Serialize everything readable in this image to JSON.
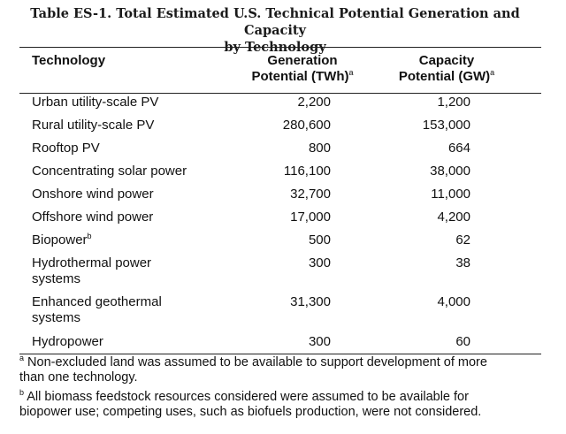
{
  "table": {
    "title_line1": "Table ES-1. Total Estimated U.S. Technical Potential Generation and Capacity",
    "title_line2": "by Technology",
    "headers": {
      "technology": "Technology",
      "generation_line1": "Generation",
      "generation_line2": "Potential (TWh)",
      "generation_sup": "a",
      "capacity_line1": "Capacity",
      "capacity_line2": "Potential (GW)",
      "capacity_sup": "a"
    },
    "rows": [
      {
        "name_line1": "Urban utility-scale PV",
        "name_line2": "",
        "sup": "",
        "generation": "2,200",
        "capacity": "1,200"
      },
      {
        "name_line1": "Rural utility-scale PV",
        "name_line2": "",
        "sup": "",
        "generation": "280,600",
        "capacity": "153,000"
      },
      {
        "name_line1": "Rooftop PV",
        "name_line2": "",
        "sup": "",
        "generation": "800",
        "capacity": "664"
      },
      {
        "name_line1": "Concentrating solar power",
        "name_line2": "",
        "sup": "",
        "generation": "116,100",
        "capacity": "38,000"
      },
      {
        "name_line1": "Onshore wind power",
        "name_line2": "",
        "sup": "",
        "generation": "32,700",
        "capacity": "11,000"
      },
      {
        "name_line1": "Offshore wind power",
        "name_line2": "",
        "sup": "",
        "generation": "17,000",
        "capacity": "4,200"
      },
      {
        "name_line1": "Biopower",
        "name_line2": "",
        "sup": "b",
        "generation": "500",
        "capacity": "62"
      },
      {
        "name_line1": "Hydrothermal power",
        "name_line2": "systems",
        "sup": "",
        "generation": "300",
        "capacity": "38"
      },
      {
        "name_line1": "Enhanced geothermal",
        "name_line2": "systems",
        "sup": "",
        "generation": "31,300",
        "capacity": "4,000"
      },
      {
        "name_line1": "Hydropower",
        "name_line2": "",
        "sup": "",
        "generation": "300",
        "capacity": "60"
      }
    ],
    "footnotes": [
      {
        "marker": "a",
        "line1": "Non-excluded land was assumed to be available to support development of more",
        "line2": "than one technology."
      },
      {
        "marker": "b",
        "line1": "All biomass feedstock resources considered were assumed to be available for",
        "line2": "biopower use; competing uses, such as biofuels production, were not considered."
      }
    ]
  }
}
